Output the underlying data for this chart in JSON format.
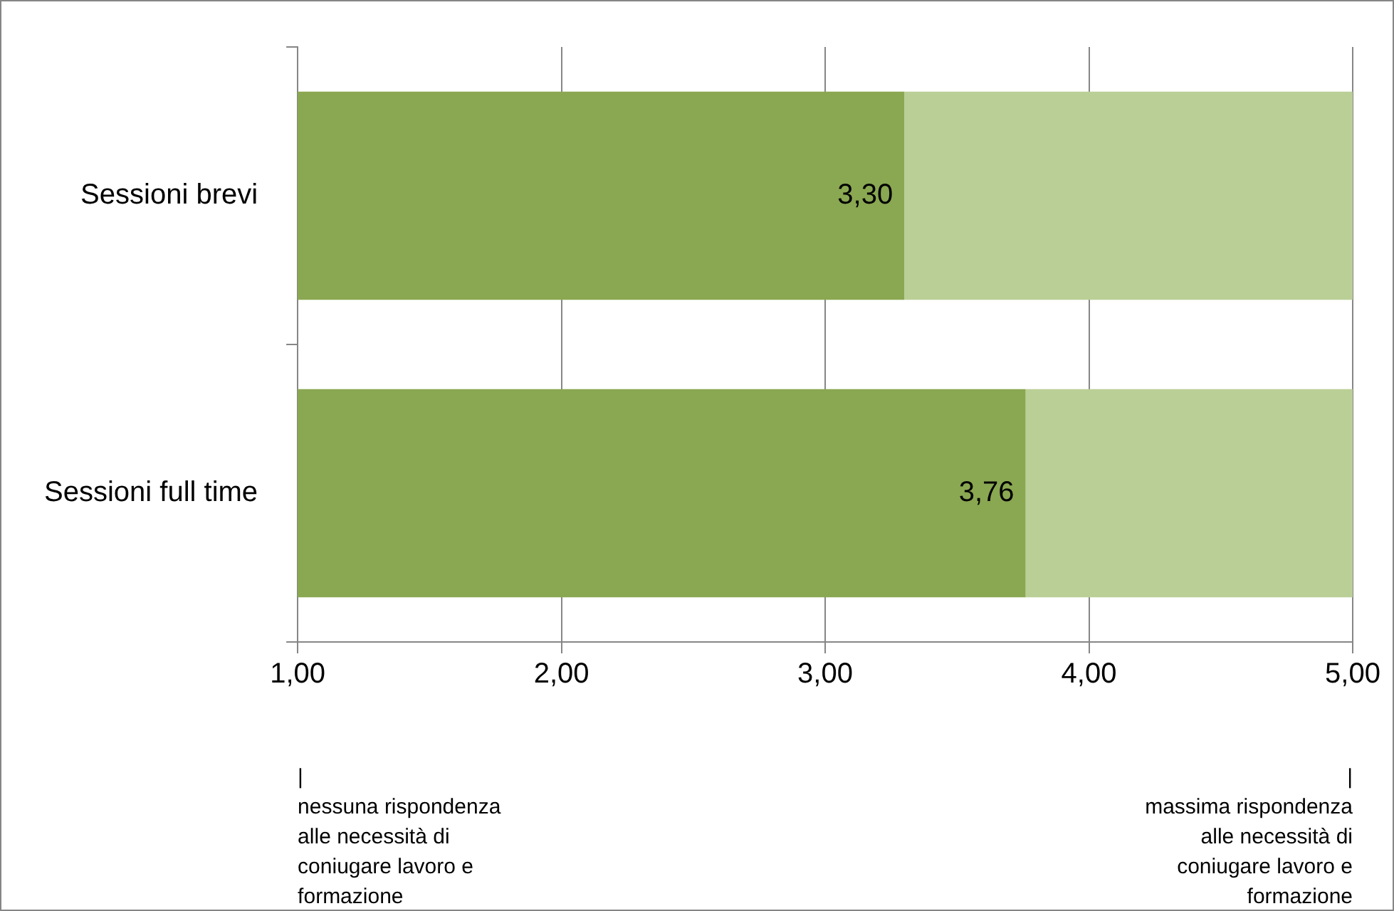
{
  "chart_data": {
    "type": "bar",
    "orientation": "horizontal",
    "stacked": true,
    "categories": [
      "Sessioni brevi",
      "Sessioni full time"
    ],
    "series": [
      {
        "color": "#8aa752",
        "values": [
          3.3,
          3.76
        ],
        "value_labels": [
          "3,30",
          "3,76"
        ]
      },
      {
        "color": "#bacf96",
        "values": [
          1.7,
          1.24
        ]
      }
    ],
    "xlim": [
      1,
      5
    ],
    "xticks": [
      {
        "value": 1,
        "label": "1,00"
      },
      {
        "value": 2,
        "label": "2,00"
      },
      {
        "value": 3,
        "label": "3,00"
      },
      {
        "value": 4,
        "label": "4,00"
      },
      {
        "value": 5,
        "label": "5,00"
      }
    ],
    "grid": "x",
    "legend": false,
    "annotations": [
      "|\nnessuna rispondenza\nalle necessità di\nconiugare lavoro e\nformazione",
      "|\nmassima rispondenza\nalle necessità di\nconiugare lavoro e\nformazione"
    ]
  }
}
